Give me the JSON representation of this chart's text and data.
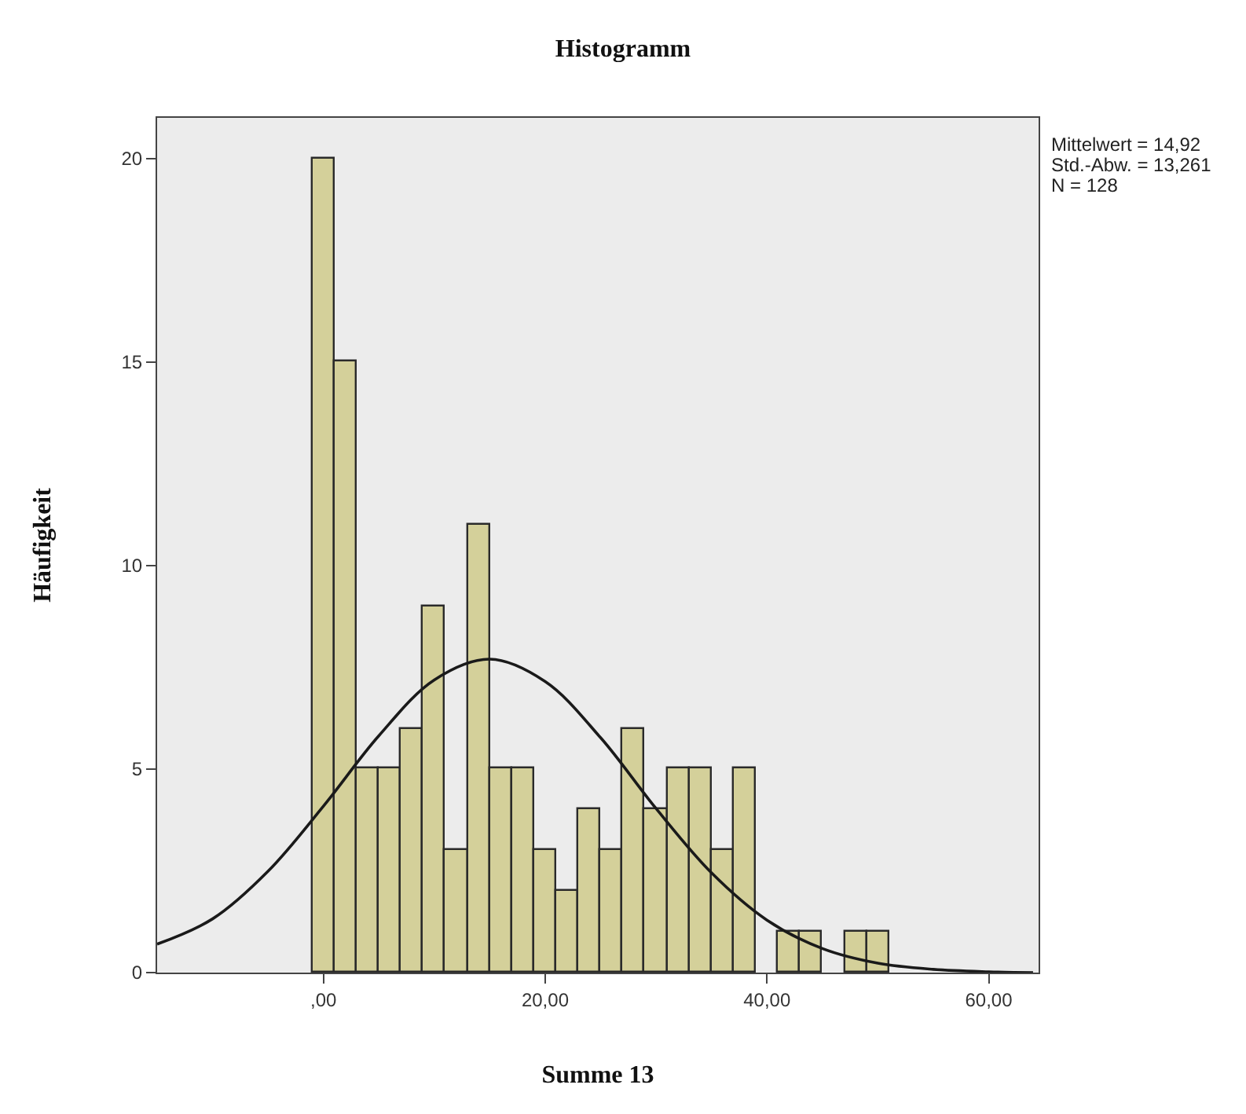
{
  "chart_data": {
    "type": "histogram",
    "title": "Histogramm",
    "xlabel": "Summe 13",
    "ylabel": "Häufigkeit",
    "bins": [
      -1,
      1,
      3,
      5,
      7,
      9,
      11,
      13,
      15,
      17,
      19,
      21,
      23,
      25,
      27,
      29,
      31,
      33,
      35,
      37,
      39,
      41,
      43,
      45,
      47,
      49,
      51
    ],
    "values": [
      20,
      15,
      5,
      5,
      6,
      9,
      3,
      11,
      5,
      5,
      3,
      2,
      4,
      3,
      6,
      4,
      5,
      5,
      3,
      5,
      0,
      1,
      1,
      0,
      1,
      1
    ],
    "color": "#d4d09a",
    "series": [
      {
        "type": "line",
        "color": "#1a1a1a",
        "x": [
          -15,
          -10,
          -5,
          0,
          5,
          10,
          15,
          20,
          25,
          30,
          35,
          40,
          45,
          50,
          55,
          60,
          64
        ],
        "values": [
          0.7,
          1.32,
          2.49,
          4.09,
          5.82,
          7.19,
          7.7,
          7.15,
          5.77,
          4.03,
          2.45,
          1.29,
          0.59,
          0.23,
          0.08,
          0.02,
          0
        ]
      }
    ],
    "xlim": [
      -15,
      64.5
    ],
    "ylim": [
      0,
      21
    ],
    "xticks": [
      {
        "value": 0,
        "label": ",00"
      },
      {
        "value": 20,
        "label": "20,00"
      },
      {
        "value": 40,
        "label": "40,00"
      },
      {
        "value": 60,
        "label": "60,00"
      }
    ],
    "yticks": [
      0,
      5,
      10,
      15,
      20
    ],
    "grid": false,
    "marker": "none",
    "line_style": "solid",
    "annotations": [
      "Mittelwert = 14,92",
      "Std.-Abw. = 13,261",
      "N = 128"
    ]
  }
}
